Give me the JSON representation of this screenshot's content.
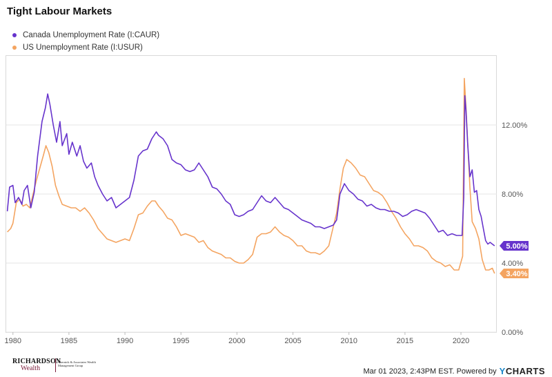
{
  "title": "Tight Labour Markets",
  "footer": {
    "timestamp": "Mar 01 2023, 2:43PM EST. Powered by",
    "brand_y": "Y",
    "brand_rest": "CHARTS",
    "logo_main": "RICHARDSON",
    "logo_sub": "Wealth",
    "logo_side": "Chernick & Associates Wealth Management Group"
  },
  "colors": {
    "canada": "#6633cc",
    "us": "#f4a460",
    "grid": "#e6e6e6"
  },
  "chart_data": {
    "type": "line",
    "title": "Tight Labour Markets",
    "xlabel": "",
    "ylabel": "",
    "xlim": [
      1979.4,
      2023.2
    ],
    "ylim": [
      0,
      16
    ],
    "x_ticks": [
      1980,
      1985,
      1990,
      1995,
      2000,
      2005,
      2010,
      2015,
      2020
    ],
    "x_tick_labels": [
      "1980",
      "1985",
      "1990",
      "1995",
      "2000",
      "2005",
      "2010",
      "2015",
      "2020"
    ],
    "y_ticks": [
      0,
      4,
      8,
      12
    ],
    "y_tick_labels": [
      "0.00%",
      "4.00%",
      "8.00%",
      "12.00%"
    ],
    "grid": "horizontal",
    "legend": "top-left",
    "series": [
      {
        "name": "Canada Unemployment Rate (I:CAUR)",
        "color": "#6633cc",
        "end_label": "5.00%",
        "points": [
          [
            1979.5,
            7.0
          ],
          [
            1979.7,
            8.4
          ],
          [
            1980.0,
            8.5
          ],
          [
            1980.2,
            7.5
          ],
          [
            1980.5,
            7.8
          ],
          [
            1980.8,
            7.4
          ],
          [
            1981.0,
            8.2
          ],
          [
            1981.3,
            8.5
          ],
          [
            1981.6,
            7.2
          ],
          [
            1981.9,
            8.1
          ],
          [
            1982.2,
            10.2
          ],
          [
            1982.6,
            12.2
          ],
          [
            1982.9,
            13.0
          ],
          [
            1983.1,
            13.8
          ],
          [
            1983.3,
            13.2
          ],
          [
            1983.6,
            12.0
          ],
          [
            1983.9,
            11.0
          ],
          [
            1984.2,
            12.2
          ],
          [
            1984.4,
            10.8
          ],
          [
            1984.8,
            11.5
          ],
          [
            1985.0,
            10.3
          ],
          [
            1985.3,
            11.0
          ],
          [
            1985.7,
            10.2
          ],
          [
            1986.0,
            10.8
          ],
          [
            1986.3,
            9.9
          ],
          [
            1986.6,
            9.5
          ],
          [
            1987.0,
            9.8
          ],
          [
            1987.3,
            9.0
          ],
          [
            1987.6,
            8.5
          ],
          [
            1988.0,
            8.0
          ],
          [
            1988.4,
            7.6
          ],
          [
            1988.8,
            7.8
          ],
          [
            1989.2,
            7.2
          ],
          [
            1989.6,
            7.4
          ],
          [
            1990.0,
            7.6
          ],
          [
            1990.4,
            7.8
          ],
          [
            1990.8,
            8.8
          ],
          [
            1991.2,
            10.2
          ],
          [
            1991.6,
            10.5
          ],
          [
            1992.0,
            10.6
          ],
          [
            1992.4,
            11.2
          ],
          [
            1992.8,
            11.6
          ],
          [
            1993.0,
            11.4
          ],
          [
            1993.4,
            11.2
          ],
          [
            1993.8,
            10.8
          ],
          [
            1994.2,
            10.0
          ],
          [
            1994.6,
            9.8
          ],
          [
            1995.0,
            9.7
          ],
          [
            1995.4,
            9.4
          ],
          [
            1995.8,
            9.3
          ],
          [
            1996.2,
            9.4
          ],
          [
            1996.6,
            9.8
          ],
          [
            1997.0,
            9.4
          ],
          [
            1997.4,
            9.0
          ],
          [
            1997.8,
            8.4
          ],
          [
            1998.2,
            8.3
          ],
          [
            1998.6,
            8.0
          ],
          [
            1999.0,
            7.6
          ],
          [
            1999.4,
            7.4
          ],
          [
            1999.8,
            6.8
          ],
          [
            2000.2,
            6.7
          ],
          [
            2000.6,
            6.8
          ],
          [
            2001.0,
            7.0
          ],
          [
            2001.4,
            7.1
          ],
          [
            2001.8,
            7.5
          ],
          [
            2002.2,
            7.9
          ],
          [
            2002.6,
            7.6
          ],
          [
            2003.0,
            7.5
          ],
          [
            2003.4,
            7.8
          ],
          [
            2003.8,
            7.5
          ],
          [
            2004.2,
            7.2
          ],
          [
            2004.6,
            7.1
          ],
          [
            2005.0,
            6.9
          ],
          [
            2005.4,
            6.7
          ],
          [
            2005.8,
            6.5
          ],
          [
            2006.2,
            6.4
          ],
          [
            2006.6,
            6.3
          ],
          [
            2007.0,
            6.1
          ],
          [
            2007.4,
            6.1
          ],
          [
            2007.8,
            6.0
          ],
          [
            2008.2,
            6.1
          ],
          [
            2008.6,
            6.2
          ],
          [
            2008.9,
            6.5
          ],
          [
            2009.2,
            8.0
          ],
          [
            2009.6,
            8.6
          ],
          [
            2010.0,
            8.2
          ],
          [
            2010.4,
            8.0
          ],
          [
            2010.8,
            7.7
          ],
          [
            2011.2,
            7.6
          ],
          [
            2011.6,
            7.3
          ],
          [
            2012.0,
            7.4
          ],
          [
            2012.4,
            7.2
          ],
          [
            2012.8,
            7.1
          ],
          [
            2013.2,
            7.1
          ],
          [
            2013.6,
            7.0
          ],
          [
            2014.0,
            7.0
          ],
          [
            2014.4,
            6.9
          ],
          [
            2014.8,
            6.7
          ],
          [
            2015.2,
            6.8
          ],
          [
            2015.6,
            7.0
          ],
          [
            2016.0,
            7.1
          ],
          [
            2016.4,
            7.0
          ],
          [
            2016.8,
            6.9
          ],
          [
            2017.2,
            6.6
          ],
          [
            2017.6,
            6.2
          ],
          [
            2018.0,
            5.8
          ],
          [
            2018.4,
            5.9
          ],
          [
            2018.8,
            5.6
          ],
          [
            2019.2,
            5.7
          ],
          [
            2019.6,
            5.6
          ],
          [
            2019.9,
            5.6
          ],
          [
            2020.1,
            5.6
          ],
          [
            2020.25,
            7.8
          ],
          [
            2020.35,
            13.7
          ],
          [
            2020.45,
            12.8
          ],
          [
            2020.6,
            10.9
          ],
          [
            2020.8,
            9.0
          ],
          [
            2021.0,
            9.4
          ],
          [
            2021.2,
            8.1
          ],
          [
            2021.4,
            8.2
          ],
          [
            2021.6,
            7.1
          ],
          [
            2021.8,
            6.7
          ],
          [
            2022.0,
            6.0
          ],
          [
            2022.2,
            5.3
          ],
          [
            2022.4,
            5.1
          ],
          [
            2022.6,
            5.2
          ],
          [
            2022.8,
            5.1
          ],
          [
            2023.0,
            5.0
          ]
        ]
      },
      {
        "name": "US Unemployment Rate (I:USUR)",
        "color": "#f4a460",
        "end_label": "3.40%",
        "points": [
          [
            1979.5,
            5.8
          ],
          [
            1979.8,
            6.0
          ],
          [
            1980.0,
            6.3
          ],
          [
            1980.3,
            7.5
          ],
          [
            1980.6,
            7.7
          ],
          [
            1980.9,
            7.3
          ],
          [
            1981.2,
            7.4
          ],
          [
            1981.5,
            7.2
          ],
          [
            1981.8,
            8.0
          ],
          [
            1982.1,
            8.8
          ],
          [
            1982.4,
            9.5
          ],
          [
            1982.7,
            10.2
          ],
          [
            1982.95,
            10.8
          ],
          [
            1983.2,
            10.4
          ],
          [
            1983.5,
            9.6
          ],
          [
            1983.8,
            8.5
          ],
          [
            1984.1,
            7.9
          ],
          [
            1984.4,
            7.4
          ],
          [
            1984.8,
            7.3
          ],
          [
            1985.2,
            7.2
          ],
          [
            1985.6,
            7.2
          ],
          [
            1986.0,
            7.0
          ],
          [
            1986.4,
            7.2
          ],
          [
            1986.8,
            6.9
          ],
          [
            1987.2,
            6.5
          ],
          [
            1987.6,
            6.0
          ],
          [
            1988.0,
            5.7
          ],
          [
            1988.4,
            5.4
          ],
          [
            1988.8,
            5.3
          ],
          [
            1989.2,
            5.2
          ],
          [
            1989.6,
            5.3
          ],
          [
            1990.0,
            5.4
          ],
          [
            1990.4,
            5.3
          ],
          [
            1990.8,
            6.0
          ],
          [
            1991.2,
            6.8
          ],
          [
            1991.6,
            6.9
          ],
          [
            1992.0,
            7.3
          ],
          [
            1992.4,
            7.6
          ],
          [
            1992.7,
            7.6
          ],
          [
            1993.0,
            7.3
          ],
          [
            1993.4,
            7.0
          ],
          [
            1993.8,
            6.6
          ],
          [
            1994.2,
            6.5
          ],
          [
            1994.6,
            6.1
          ],
          [
            1995.0,
            5.6
          ],
          [
            1995.4,
            5.7
          ],
          [
            1995.8,
            5.6
          ],
          [
            1996.2,
            5.5
          ],
          [
            1996.6,
            5.2
          ],
          [
            1997.0,
            5.3
          ],
          [
            1997.4,
            4.9
          ],
          [
            1997.8,
            4.7
          ],
          [
            1998.2,
            4.6
          ],
          [
            1998.6,
            4.5
          ],
          [
            1999.0,
            4.3
          ],
          [
            1999.4,
            4.3
          ],
          [
            1999.8,
            4.1
          ],
          [
            2000.2,
            4.0
          ],
          [
            2000.6,
            4.0
          ],
          [
            2001.0,
            4.2
          ],
          [
            2001.4,
            4.5
          ],
          [
            2001.8,
            5.5
          ],
          [
            2002.2,
            5.7
          ],
          [
            2002.6,
            5.7
          ],
          [
            2003.0,
            5.8
          ],
          [
            2003.4,
            6.1
          ],
          [
            2003.8,
            5.8
          ],
          [
            2004.2,
            5.6
          ],
          [
            2004.6,
            5.5
          ],
          [
            2005.0,
            5.3
          ],
          [
            2005.4,
            5.0
          ],
          [
            2005.8,
            5.0
          ],
          [
            2006.2,
            4.7
          ],
          [
            2006.6,
            4.6
          ],
          [
            2007.0,
            4.6
          ],
          [
            2007.4,
            4.5
          ],
          [
            2007.8,
            4.7
          ],
          [
            2008.2,
            5.0
          ],
          [
            2008.6,
            6.1
          ],
          [
            2008.9,
            6.9
          ],
          [
            2009.2,
            8.3
          ],
          [
            2009.5,
            9.5
          ],
          [
            2009.8,
            10.0
          ],
          [
            2010.2,
            9.8
          ],
          [
            2010.6,
            9.5
          ],
          [
            2011.0,
            9.1
          ],
          [
            2011.4,
            9.0
          ],
          [
            2011.8,
            8.6
          ],
          [
            2012.2,
            8.2
          ],
          [
            2012.6,
            8.1
          ],
          [
            2013.0,
            7.9
          ],
          [
            2013.4,
            7.5
          ],
          [
            2013.8,
            7.0
          ],
          [
            2014.2,
            6.6
          ],
          [
            2014.6,
            6.1
          ],
          [
            2015.0,
            5.7
          ],
          [
            2015.4,
            5.4
          ],
          [
            2015.8,
            5.0
          ],
          [
            2016.2,
            5.0
          ],
          [
            2016.6,
            4.9
          ],
          [
            2017.0,
            4.7
          ],
          [
            2017.4,
            4.3
          ],
          [
            2017.8,
            4.1
          ],
          [
            2018.2,
            4.0
          ],
          [
            2018.6,
            3.8
          ],
          [
            2019.0,
            3.9
          ],
          [
            2019.4,
            3.6
          ],
          [
            2019.8,
            3.6
          ],
          [
            2020.15,
            4.4
          ],
          [
            2020.3,
            14.7
          ],
          [
            2020.45,
            13.0
          ],
          [
            2020.6,
            11.0
          ],
          [
            2020.8,
            8.4
          ],
          [
            2021.0,
            6.4
          ],
          [
            2021.3,
            6.0
          ],
          [
            2021.6,
            5.4
          ],
          [
            2021.9,
            4.2
          ],
          [
            2022.2,
            3.6
          ],
          [
            2022.5,
            3.6
          ],
          [
            2022.8,
            3.7
          ],
          [
            2023.0,
            3.4
          ]
        ]
      }
    ]
  }
}
